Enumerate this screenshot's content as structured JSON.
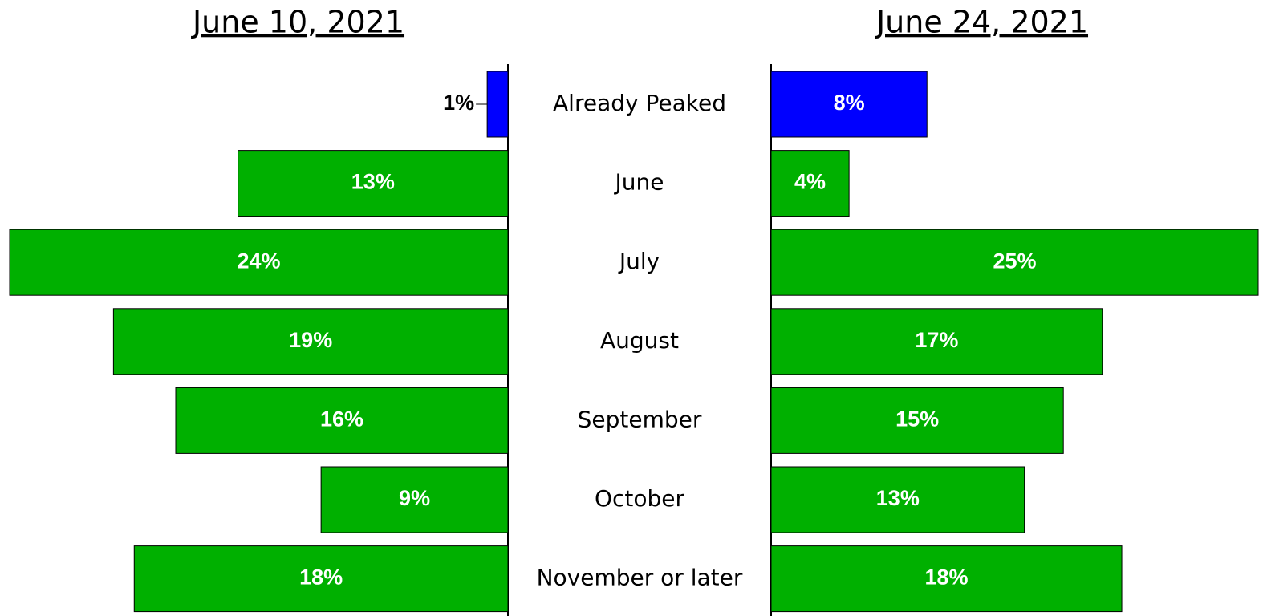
{
  "chart_data": {
    "type": "butterfly-bar",
    "categories": [
      "Already Peaked",
      "June",
      "July",
      "August",
      "September",
      "October",
      "November or later"
    ],
    "series": [
      {
        "name": "June 10, 2021",
        "colors": [
          "#0000ff",
          "#00b000",
          "#00b000",
          "#00b000",
          "#00b000",
          "#00b000",
          "#00b000"
        ],
        "values": [
          1,
          13,
          24,
          19,
          16,
          9,
          18
        ],
        "value_labels": [
          "1%",
          "13%",
          "24%",
          "19%",
          "16%",
          "9%",
          "18%"
        ]
      },
      {
        "name": "June 24, 2021",
        "colors": [
          "#0000ff",
          "#00b000",
          "#00b000",
          "#00b000",
          "#00b000",
          "#00b000",
          "#00b000"
        ],
        "values": [
          8,
          4,
          25,
          17,
          15,
          13,
          18
        ],
        "value_labels": [
          "8%",
          "4%",
          "25%",
          "17%",
          "15%",
          "13%",
          "18%"
        ]
      }
    ]
  }
}
